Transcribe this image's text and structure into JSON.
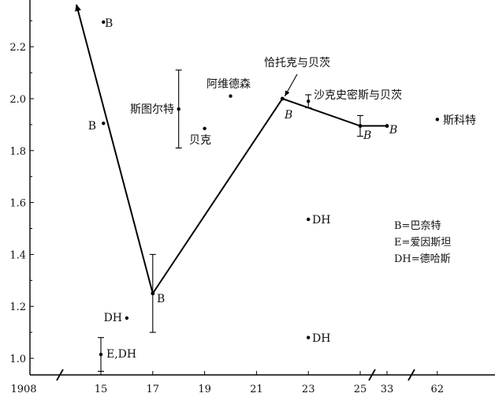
{
  "chart_data": {
    "type": "scatter",
    "title": "",
    "xlabel": "",
    "ylabel": "",
    "x_ticks": [
      "1908",
      "15",
      "17",
      "19",
      "21",
      "23",
      "25",
      "33",
      "62"
    ],
    "y_ticks": [
      "1.0",
      "1.2",
      "1.4",
      "1.6",
      "1.8",
      "2.0",
      "2.2"
    ],
    "ylim": [
      0.95,
      2.36
    ],
    "points": [
      {
        "x": 15.1,
        "y": 2.295,
        "label": "B",
        "label_pos": "right"
      },
      {
        "x": 15.1,
        "y": 1.905,
        "label": "B",
        "label_pos": "left"
      },
      {
        "x": 16.0,
        "y": 1.155,
        "label": "DH",
        "label_pos": "left"
      },
      {
        "x": 15.0,
        "y": 1.015,
        "label": "E,DH",
        "label_pos": "right",
        "err": 0.065
      },
      {
        "x": 18.0,
        "y": 1.96,
        "label": "斯图尔特",
        "label_pos": "left",
        "err": 0.15
      },
      {
        "x": 19.0,
        "y": 1.885,
        "label": "贝克",
        "label_pos": "below-left"
      },
      {
        "x": 20.0,
        "y": 2.01,
        "label": "阿维德森",
        "label_pos": "above-left"
      },
      {
        "x": 23.0,
        "y": 1.99,
        "label": "沙克史密斯与贝茨",
        "label_pos": "right",
        "err": 0.025
      },
      {
        "x": 23.0,
        "y": 1.535,
        "label": "DH",
        "label_pos": "right"
      },
      {
        "x": 23.0,
        "y": 1.08,
        "label": "DH",
        "label_pos": "right"
      },
      {
        "x": 62,
        "y": 1.92,
        "label": "斯科特",
        "label_pos": "right"
      }
    ],
    "series": [
      {
        "values": [
          {
            "x": 17.0,
            "y": 1.25,
            "label": "B",
            "err": 0.15
          },
          {
            "x": 22.0,
            "y": 2.0,
            "label": "B"
          },
          {
            "x": 25.0,
            "y": 1.895,
            "label": "B",
            "err": 0.04
          },
          {
            "x": 33,
            "y": 1.895,
            "label": "B"
          }
        ]
      }
    ],
    "arrow_start": {
      "x": 17.0,
      "y": 1.25
    },
    "arrow_end": {
      "x": 14.0,
      "y": 2.36
    },
    "annotation": {
      "text": "恰托克与贝茨",
      "points_to": {
        "x": 22.0,
        "y": 2.0
      }
    },
    "legend": {
      "position": "right",
      "entries": [
        "B=巴奈特",
        "E=爱因斯坦",
        "DH=德哈斯"
      ]
    }
  }
}
